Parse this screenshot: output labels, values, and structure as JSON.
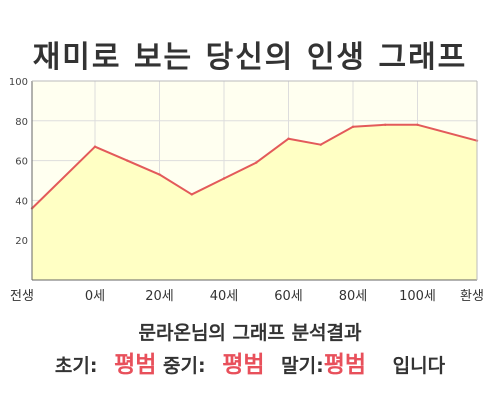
{
  "title": "재미로 보는 당신의 인생 그래프",
  "summary_line": "문라온님의 그래프 분석결과",
  "results": {
    "early_label": "초기:",
    "early_value": "평범",
    "middle_label": "중기:",
    "middle_value": "평범",
    "late_label": "말기:",
    "late_value": "평범",
    "suffix": "입니다"
  },
  "colors": {
    "line": "#e35a5a",
    "fill": "#ffffc4",
    "background": "#fffff0",
    "grid": "#dddddd",
    "highlight": "#e8505b"
  },
  "chart_data": {
    "type": "area",
    "title": "재미로 보는 당신의 인생 그래프",
    "xlabel": "",
    "ylabel": "",
    "x_labels": [
      "전생",
      "0세",
      "20세",
      "40세",
      "60세",
      "80세",
      "100세",
      "환생"
    ],
    "ylim": [
      0,
      100
    ],
    "y_ticks": [
      20,
      40,
      60,
      80,
      100
    ],
    "grid": true,
    "series": [
      {
        "x": [
          "전생",
          "0세",
          "10세",
          "20세",
          "30세",
          "40세",
          "50세",
          "60세",
          "70세",
          "80세",
          "90세",
          "100세",
          "환생"
        ],
        "values": [
          36,
          67,
          60,
          53,
          43,
          51,
          59,
          71,
          68,
          77,
          78,
          78,
          70
        ]
      }
    ]
  }
}
